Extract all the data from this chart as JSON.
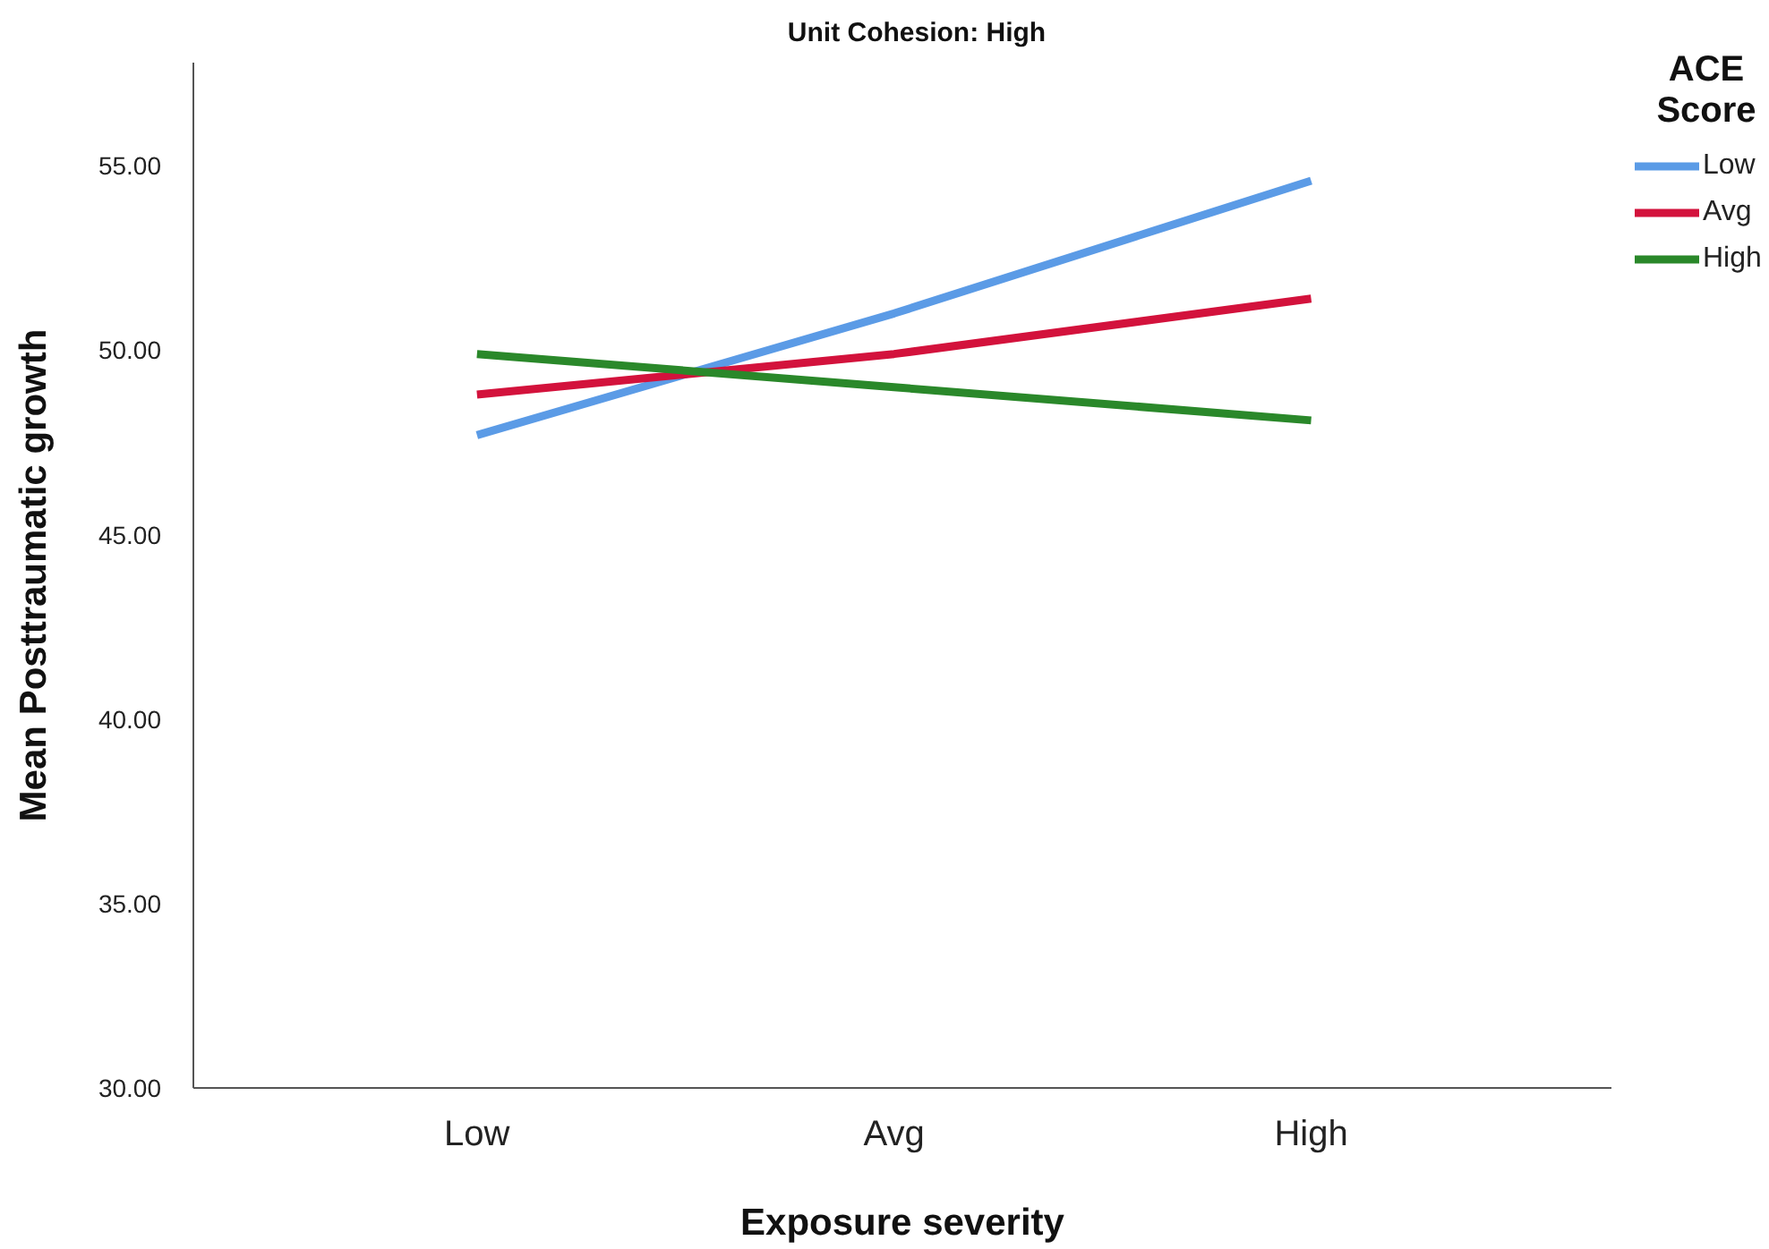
{
  "chart_data": {
    "type": "line",
    "title": "Unit Cohesion: High",
    "xlabel": "Exposure severity",
    "ylabel": "Mean Posttraumatic growth",
    "legend_title": "ACE Score",
    "categories": [
      "Low",
      "Avg",
      "High"
    ],
    "series": [
      {
        "name": "Low",
        "color": "#5b9be6",
        "values": [
          47.7,
          51.0,
          54.6
        ]
      },
      {
        "name": "Avg",
        "color": "#d3123c",
        "values": [
          48.8,
          49.9,
          51.4
        ]
      },
      {
        "name": "High",
        "color": "#2a882a",
        "values": [
          49.9,
          49.0,
          48.1
        ]
      }
    ],
    "ylim": [
      30,
      57.8
    ],
    "yticks": [
      {
        "value": 30,
        "label": "30.00"
      },
      {
        "value": 35,
        "label": "35.00"
      },
      {
        "value": 40,
        "label": "40.00"
      },
      {
        "value": 45,
        "label": "45.00"
      },
      {
        "value": 50,
        "label": "50.00"
      },
      {
        "value": 55,
        "label": "55.00"
      }
    ],
    "grid": false,
    "legend": "right",
    "marker": "none",
    "line_style": "solid"
  }
}
